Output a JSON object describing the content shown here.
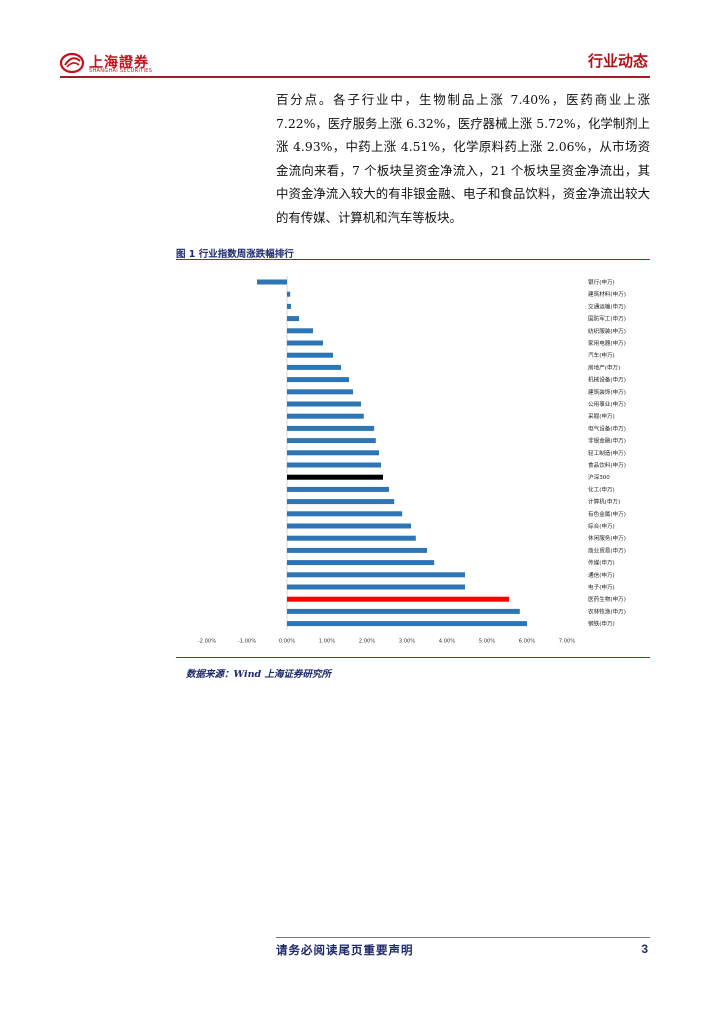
{
  "header": {
    "logo_text": "上海證券",
    "logo_sub": "SHANGHAI SECURITIES",
    "section_title": "行业动态"
  },
  "body": {
    "paragraph": "百分点。各子行业中，生物制品上涨 7.40%，医药商业上涨 7.22%，医疗服务上涨 6.32%，医疗器械上涨 5.72%，化学制剂上涨 4.93%，中药上涨 4.51%，化学原料药上涨 2.06%，从市场资金流向来看，7 个板块呈资金净流入，21 个板块呈资金净流出，其中资金净流入较大的有非银金融、电子和食品饮料，资金净流出较大的有传媒、计算机和汽车等板块。"
  },
  "figure": {
    "title": "图 1 行业指数周涨跌幅排行",
    "source": "数据来源：Wind  上海证券研究所"
  },
  "chart_data": {
    "type": "bar",
    "orientation": "horizontal",
    "categories": [
      "银行(申万)",
      "建筑材料(申万)",
      "交通运输(申万)",
      "国防军工(申万)",
      "纺织服装(申万)",
      "家用电器(申万)",
      "汽车(申万)",
      "房地产(申万)",
      "机械设备(申万)",
      "建筑装饰(申万)",
      "公用事业(申万)",
      "采掘(申万)",
      "电气设备(申万)",
      "非银金融(申万)",
      "轻工制造(申万)",
      "食品饮料(申万)",
      "沪深300",
      "化工(申万)",
      "计算机(申万)",
      "有色金属(申万)",
      "综合(申万)",
      "休闲服务(申万)",
      "商业贸易(申万)",
      "传媒(申万)",
      "通信(申万)",
      "电子(申万)",
      "医药生物(申万)",
      "农林牧渔(申万)",
      "钢铁(申万)"
    ],
    "values": [
      -0.75,
      0.08,
      0.1,
      0.3,
      0.65,
      0.9,
      1.15,
      1.35,
      1.55,
      1.65,
      1.85,
      1.92,
      2.18,
      2.22,
      2.3,
      2.35,
      2.4,
      2.55,
      2.68,
      2.88,
      3.1,
      3.22,
      3.5,
      3.68,
      4.45,
      4.45,
      5.55,
      5.82,
      6.0
    ],
    "highlight": {
      "沪深300": "#000000",
      "医药生物(申万)": "#ff0000"
    },
    "bar_color": "#2e75b6",
    "xticks": [
      "-2.00%",
      "-1.00%",
      "0.00%",
      "1.00%",
      "2.00%",
      "3.00%",
      "4.00%",
      "5.00%",
      "6.00%",
      "7.00%"
    ],
    "xlim": [
      -2.0,
      7.0
    ],
    "grid": false
  },
  "footer": {
    "disclaimer": "请务必阅读尾页重要声明",
    "page": "3"
  }
}
